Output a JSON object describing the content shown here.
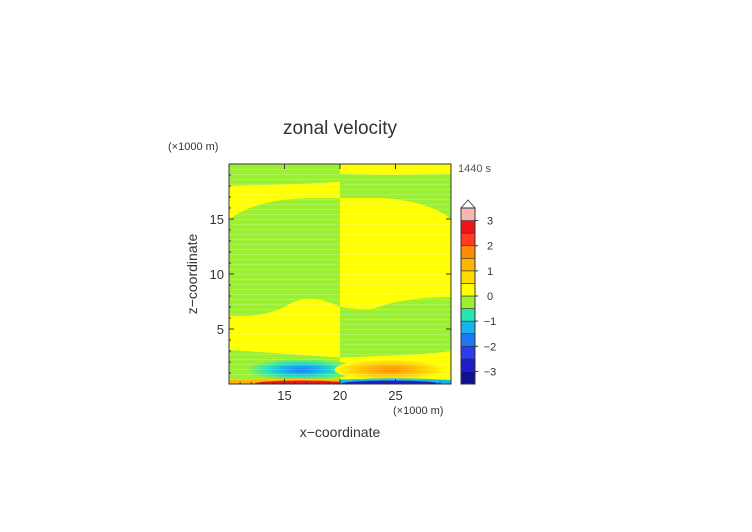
{
  "chart_data": {
    "type": "heatmap",
    "title": "zonal velocity",
    "xlabel": "x−coordinate",
    "ylabel": "z−coordinate",
    "x_unit": "(×1000 m)",
    "y_unit": "(×1000 m)",
    "time_label": "1440 s",
    "xlim": [
      10,
      30
    ],
    "ylim": [
      0,
      20
    ],
    "x_ticks": [
      15,
      20,
      25
    ],
    "y_ticks": [
      5,
      10,
      15
    ],
    "colorbar": {
      "tick_labels": [
        "3",
        "2",
        "1",
        "0",
        "−1",
        "−2",
        "−3"
      ],
      "tick_values": [
        3,
        2,
        1,
        0,
        -1,
        -2,
        -3
      ],
      "range": [
        -3.5,
        3.5
      ],
      "extend": "max",
      "levels": [
        {
          "lo": -3.5,
          "hi": -3.0,
          "color": "#10108c"
        },
        {
          "lo": -3.0,
          "hi": -2.5,
          "color": "#1e1ec8"
        },
        {
          "lo": -2.5,
          "hi": -2.0,
          "color": "#2a3cf2"
        },
        {
          "lo": -2.0,
          "hi": -1.5,
          "color": "#1e78f2"
        },
        {
          "lo": -1.5,
          "hi": -1.0,
          "color": "#14b4ec"
        },
        {
          "lo": -1.0,
          "hi": -0.5,
          "color": "#28e6b4"
        },
        {
          "lo": -0.5,
          "hi": 0.0,
          "color": "#9cf032"
        },
        {
          "lo": 0.0,
          "hi": 0.5,
          "color": "#ffff00"
        },
        {
          "lo": 0.5,
          "hi": 1.0,
          "color": "#ffdc00"
        },
        {
          "lo": 1.0,
          "hi": 1.5,
          "color": "#ffb400"
        },
        {
          "lo": 1.5,
          "hi": 2.0,
          "color": "#ff8c00"
        },
        {
          "lo": 2.0,
          "hi": 2.5,
          "color": "#ff3c1e"
        },
        {
          "lo": 2.5,
          "hi": 3.0,
          "color": "#f01414"
        },
        {
          "lo": 3.0,
          "hi": 3.5,
          "color": "#ffb4b4"
        }
      ]
    },
    "field_regions": [
      {
        "name": "left-lower-yellow",
        "x": [
          10,
          20
        ],
        "z": [
          2.4,
          6.8
        ],
        "value": 0.2
      },
      {
        "name": "left-middle-green",
        "x": [
          10,
          20
        ],
        "z": [
          6.8,
          16.8
        ],
        "value": -0.2
      },
      {
        "name": "left-upper-yellow",
        "x": [
          10,
          20
        ],
        "z": [
          16.8,
          18.2
        ],
        "value": 0.2
      },
      {
        "name": "left-top-green",
        "x": [
          10,
          20
        ],
        "z": [
          18.2,
          20
        ],
        "value": -0.2
      },
      {
        "name": "right-lower-green",
        "x": [
          20,
          30
        ],
        "z": [
          2.4,
          7.0
        ],
        "value": -0.2
      },
      {
        "name": "right-middle-yellow",
        "x": [
          20,
          30
        ],
        "z": [
          7.0,
          15.0
        ],
        "value": 0.2
      },
      {
        "name": "right-upper-green",
        "x": [
          20,
          30
        ],
        "z": [
          15.0,
          19.0
        ],
        "value": -0.2
      },
      {
        "name": "right-top-yellow",
        "x": [
          20,
          30
        ],
        "z": [
          19.0,
          20
        ],
        "value": 0.2
      }
    ],
    "features": [
      {
        "name": "left-negative-jet",
        "center": [
          16.5,
          1.3
        ],
        "value": -1.8
      },
      {
        "name": "right-positive-jet",
        "center": [
          24.5,
          1.3
        ],
        "value": 1.2
      },
      {
        "name": "left-surface-positive",
        "center": [
          16.5,
          0.1
        ],
        "value": 3.0
      },
      {
        "name": "right-surface-negative",
        "center": [
          24.5,
          0.1
        ],
        "value": -3.0
      }
    ]
  }
}
